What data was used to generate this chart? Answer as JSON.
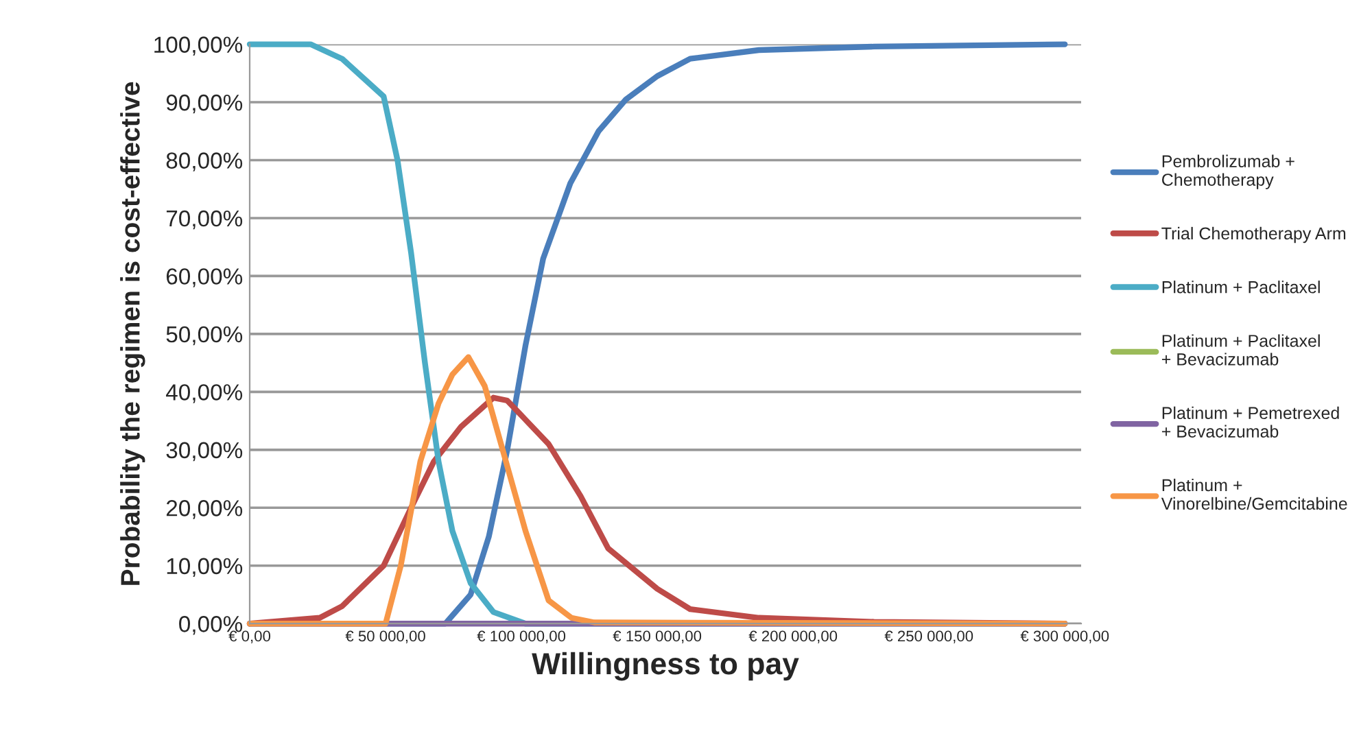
{
  "chart_data": {
    "type": "line",
    "xlabel": "Willingness to pay",
    "ylabel": "Probability the regimen is cost-effective",
    "xlim": [
      0,
      306000
    ],
    "ylim": [
      0,
      100
    ],
    "xticks": [
      {
        "value": 0,
        "label": "€ 0,00"
      },
      {
        "value": 50000,
        "label": "€ 50 000,00"
      },
      {
        "value": 100000,
        "label": "€ 100 000,00"
      },
      {
        "value": 150000,
        "label": "€ 150 000,00"
      },
      {
        "value": 200000,
        "label": "€ 200 000,00"
      },
      {
        "value": 250000,
        "label": "€ 250 000,00"
      },
      {
        "value": 300000,
        "label": "€ 300 000,00"
      }
    ],
    "yticks": [
      {
        "value": 0,
        "label": "0,00%"
      },
      {
        "value": 10,
        "label": "10,00%"
      },
      {
        "value": 20,
        "label": "20,00%"
      },
      {
        "value": 30,
        "label": "30,00%"
      },
      {
        "value": 40,
        "label": "40,00%"
      },
      {
        "value": 50,
        "label": "50,00%"
      },
      {
        "value": 60,
        "label": "60,00%"
      },
      {
        "value": 70,
        "label": "70,00%"
      },
      {
        "value": 80,
        "label": "80,00%"
      },
      {
        "value": 90,
        "label": "90,00%"
      },
      {
        "value": 100,
        "label": "100,00%"
      }
    ],
    "grid": "y",
    "legend": "right",
    "marker": "none",
    "line_style": "solid",
    "series": [
      {
        "name": "Pembrolizumab + Chemotherapy",
        "color": "#4a7ebb",
        "x": [
          0,
          72000,
          81300,
          88000,
          94800,
          101500,
          108000,
          118000,
          128400,
          138500,
          150000,
          162100,
          187400,
          229800,
          300000
        ],
        "values": [
          0,
          0,
          5,
          15,
          30,
          48,
          63,
          76,
          85,
          90.5,
          94.5,
          97.5,
          99,
          99.6,
          100
        ]
      },
      {
        "name": "Trial Chemotherapy Arm",
        "color": "#be4b48",
        "x": [
          0,
          25800,
          34000,
          49300,
          59400,
          67800,
          77800,
          89700,
          94800,
          110000,
          121800,
          131900,
          150000,
          162100,
          187400,
          229800,
          300000
        ],
        "values": [
          0,
          1,
          3,
          10,
          20,
          28,
          34,
          39,
          38.5,
          31,
          22,
          13,
          6,
          2.5,
          1,
          0.3,
          0
        ]
      },
      {
        "name": "Platinum + Paclitaxel",
        "color": "#4bacc6",
        "x": [
          0,
          22400,
          34000,
          49300,
          54400,
          59400,
          64500,
          69500,
          74600,
          81300,
          89700,
          101500,
          300000
        ],
        "values": [
          100,
          100,
          97.5,
          91,
          80,
          64,
          45,
          28,
          16,
          7,
          2,
          0,
          0
        ]
      },
      {
        "name": "Platinum + Paclitaxel + Bevacizumab",
        "color": "#9bbb59"
      },
      {
        "name": "Platinum + Pemetrexed + Bevacizumab",
        "color": "#8064a2",
        "x": [
          0,
          300000
        ],
        "values": [
          0,
          0
        ]
      },
      {
        "name": "Platinum + Vinorelbine/Gemcitabine",
        "color": "#f79646",
        "x": [
          0,
          50000,
          55600,
          62800,
          69500,
          74600,
          80500,
          86500,
          93100,
          101500,
          110000,
          118400,
          126800,
          300000
        ],
        "values": [
          0,
          0,
          10,
          28,
          38,
          43,
          46,
          41,
          30,
          16,
          4,
          1,
          0.2,
          0
        ]
      }
    ]
  }
}
